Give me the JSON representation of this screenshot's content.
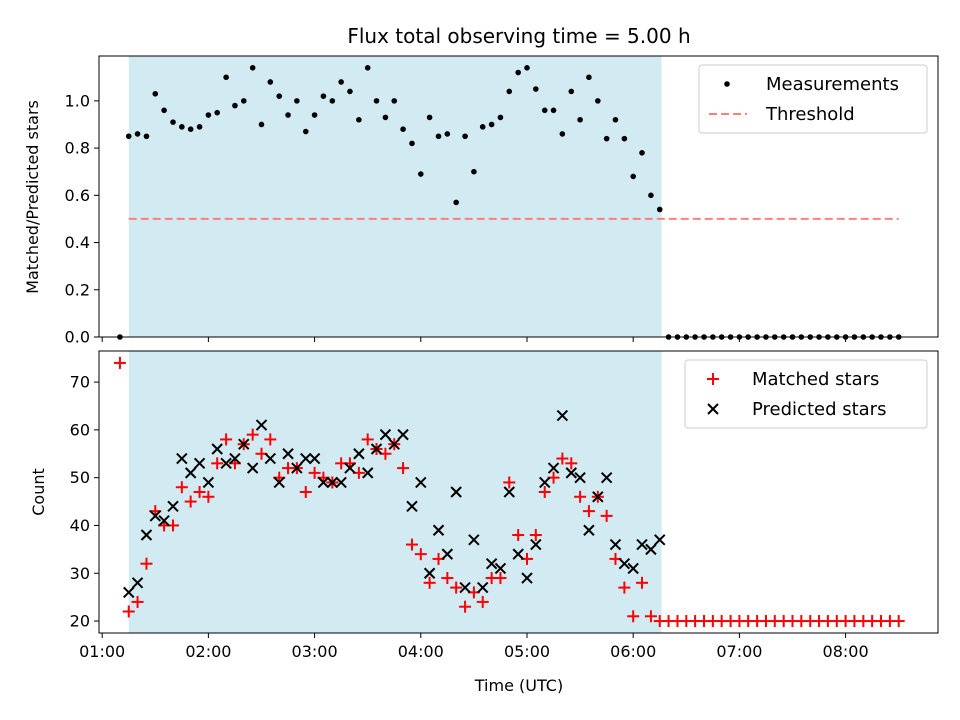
{
  "title": "Flux total observing time = 5.00 h",
  "colors": {
    "band": "#add8e6",
    "measurement": "#000000",
    "threshold": "#ff7f7f",
    "matched": "#ff0000",
    "predicted": "#000000"
  },
  "chart_data": [
    {
      "type": "scatter",
      "ylabel": "Matched/Predicted stars",
      "xlim": [
        0.97,
        8.87
      ],
      "ylim": [
        0.0,
        1.19
      ],
      "yticks": [
        0.0,
        0.2,
        0.4,
        0.6,
        0.8,
        1.0
      ],
      "ytick_labels": [
        "0.0",
        "0.2",
        "0.4",
        "0.6",
        "0.8",
        "1.0"
      ],
      "legend_position": "top-right",
      "legend": [
        "Measurements",
        "Threshold"
      ],
      "observing_window": [
        1.25,
        6.267
      ],
      "threshold": {
        "name": "Threshold",
        "value": 0.5,
        "x": [
          1.25,
          8.5
        ]
      },
      "series": [
        {
          "name": "Measurements",
          "marker": "dot",
          "x": [
            1.167,
            1.25,
            1.333,
            1.417,
            1.5,
            1.583,
            1.667,
            1.75,
            1.833,
            1.917,
            2.0,
            2.083,
            2.167,
            2.25,
            2.333,
            2.417,
            2.5,
            2.583,
            2.667,
            2.75,
            2.833,
            2.917,
            3.0,
            3.083,
            3.167,
            3.25,
            3.333,
            3.417,
            3.5,
            3.583,
            3.667,
            3.75,
            3.833,
            3.917,
            4.0,
            4.083,
            4.167,
            4.25,
            4.333,
            4.417,
            4.5,
            4.583,
            4.667,
            4.75,
            4.833,
            4.917,
            5.0,
            5.083,
            5.167,
            5.25,
            5.333,
            5.417,
            5.5,
            5.583,
            5.667,
            5.75,
            5.833,
            5.917,
            6.0,
            6.083,
            6.167,
            6.25,
            6.333,
            6.417,
            6.5,
            6.583,
            6.667,
            6.75,
            6.833,
            6.917,
            7.0,
            7.083,
            7.167,
            7.25,
            7.333,
            7.417,
            7.5,
            7.583,
            7.667,
            7.75,
            7.833,
            7.917,
            8.0,
            8.083,
            8.167,
            8.25,
            8.333,
            8.417,
            8.5
          ],
          "y": [
            0.0,
            0.85,
            0.86,
            0.85,
            1.03,
            0.96,
            0.91,
            0.89,
            0.88,
            0.89,
            0.94,
            0.95,
            1.1,
            0.98,
            1.0,
            1.14,
            0.9,
            1.08,
            1.02,
            0.94,
            1.0,
            0.87,
            0.94,
            1.02,
            1.0,
            1.08,
            1.04,
            0.92,
            1.14,
            1.0,
            0.93,
            1.0,
            0.88,
            0.82,
            0.69,
            0.93,
            0.85,
            0.86,
            0.57,
            0.85,
            0.7,
            0.89,
            0.9,
            0.93,
            1.04,
            1.12,
            1.14,
            1.05,
            0.96,
            0.96,
            0.86,
            1.04,
            0.92,
            1.1,
            1.0,
            0.84,
            0.92,
            0.84,
            0.68,
            0.78,
            0.6,
            0.54,
            0.0,
            0.0,
            0.0,
            0.0,
            0.0,
            0.0,
            0.0,
            0.0,
            0.0,
            0.0,
            0.0,
            0.0,
            0.0,
            0.0,
            0.0,
            0.0,
            0.0,
            0.0,
            0.0,
            0.0,
            0.0,
            0.0,
            0.0,
            0.0,
            0.0,
            0.0,
            0.0
          ]
        }
      ]
    },
    {
      "type": "scatter",
      "xlabel": "Time (UTC)",
      "ylabel": "Count",
      "xlim": [
        0.97,
        8.87
      ],
      "ylim": [
        17.5,
        76.5
      ],
      "xticks": [
        1,
        2,
        3,
        4,
        5,
        6,
        7,
        8
      ],
      "xtick_labels": [
        "01:00",
        "02:00",
        "03:00",
        "04:00",
        "05:00",
        "06:00",
        "07:00",
        "08:00"
      ],
      "yticks": [
        20,
        30,
        40,
        50,
        60,
        70
      ],
      "ytick_labels": [
        "20",
        "30",
        "40",
        "50",
        "60",
        "70"
      ],
      "legend_position": "top-right",
      "legend": [
        "Matched stars",
        "Predicted stars"
      ],
      "observing_window": [
        1.25,
        6.267
      ],
      "series": [
        {
          "name": "Matched stars",
          "marker": "plus",
          "x": [
            1.167,
            1.25,
            1.333,
            1.417,
            1.5,
            1.583,
            1.667,
            1.75,
            1.833,
            1.917,
            2.0,
            2.083,
            2.167,
            2.25,
            2.333,
            2.417,
            2.5,
            2.583,
            2.667,
            2.75,
            2.833,
            2.917,
            3.0,
            3.083,
            3.167,
            3.25,
            3.333,
            3.417,
            3.5,
            3.583,
            3.667,
            3.75,
            3.833,
            3.917,
            4.0,
            4.083,
            4.167,
            4.25,
            4.333,
            4.417,
            4.5,
            4.583,
            4.667,
            4.75,
            4.833,
            4.917,
            5.0,
            5.083,
            5.167,
            5.25,
            5.333,
            5.417,
            5.5,
            5.583,
            5.667,
            5.75,
            5.833,
            5.917,
            6.0,
            6.083,
            6.167,
            6.25,
            6.333,
            6.417,
            6.5,
            6.583,
            6.667,
            6.75,
            6.833,
            6.917,
            7.0,
            7.083,
            7.167,
            7.25,
            7.333,
            7.417,
            7.5,
            7.583,
            7.667,
            7.75,
            7.833,
            7.917,
            8.0,
            8.083,
            8.167,
            8.25,
            8.333,
            8.417,
            8.5
          ],
          "y": [
            74,
            22,
            24,
            32,
            43,
            40,
            40,
            48,
            45,
            47,
            46,
            53,
            58,
            53,
            57,
            59,
            55,
            58,
            50,
            52,
            52,
            47,
            51,
            50,
            49,
            53,
            53,
            51,
            58,
            56,
            55,
            57,
            52,
            36,
            34,
            28,
            33,
            29,
            27,
            23,
            26,
            24,
            29,
            29,
            49,
            38,
            33,
            38,
            47,
            50,
            54,
            53,
            46,
            43,
            46,
            42,
            33,
            27,
            21,
            28,
            21,
            20,
            20,
            20,
            20,
            20,
            20,
            20,
            20,
            20,
            20,
            20,
            20,
            20,
            20,
            20,
            20,
            20,
            20,
            20,
            20,
            20,
            20,
            20,
            20,
            20,
            20,
            20,
            20
          ]
        },
        {
          "name": "Predicted stars",
          "marker": "cross",
          "x": [
            1.25,
            1.333,
            1.417,
            1.5,
            1.583,
            1.667,
            1.75,
            1.833,
            1.917,
            2.0,
            2.083,
            2.167,
            2.25,
            2.333,
            2.417,
            2.5,
            2.583,
            2.667,
            2.75,
            2.833,
            2.917,
            3.0,
            3.083,
            3.167,
            3.25,
            3.333,
            3.417,
            3.5,
            3.583,
            3.667,
            3.75,
            3.833,
            3.917,
            4.0,
            4.083,
            4.167,
            4.25,
            4.333,
            4.417,
            4.5,
            4.583,
            4.667,
            4.75,
            4.833,
            4.917,
            5.0,
            5.083,
            5.167,
            5.25,
            5.333,
            5.417,
            5.5,
            5.583,
            5.667,
            5.75,
            5.833,
            5.917,
            6.0,
            6.083,
            6.167,
            6.25
          ],
          "y": [
            26,
            28,
            38,
            42,
            41,
            44,
            54,
            51,
            53,
            49,
            56,
            53,
            54,
            57,
            52,
            61,
            54,
            49,
            55,
            52,
            54,
            54,
            49,
            49,
            49,
            52,
            55,
            51,
            56,
            59,
            57,
            59,
            44,
            49,
            30,
            39,
            34,
            47,
            27,
            37,
            27,
            32,
            31,
            47,
            34,
            29,
            36,
            49,
            52,
            63,
            51,
            50,
            39,
            46,
            50,
            36,
            32,
            31,
            36,
            35,
            37
          ]
        }
      ]
    }
  ]
}
